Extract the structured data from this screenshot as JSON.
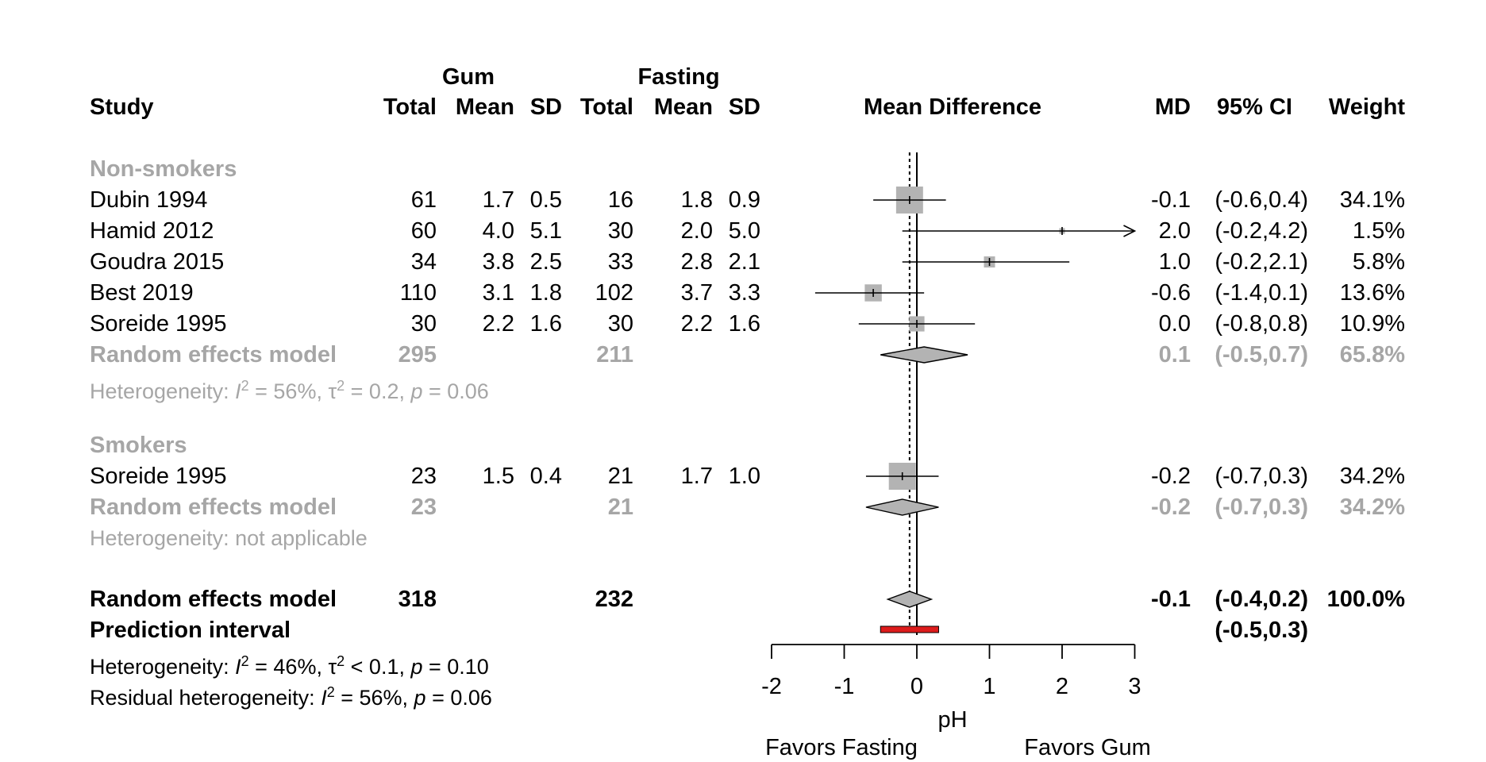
{
  "headers": {
    "group1": "Gum",
    "group2": "Fasting",
    "study": "Study",
    "total1": "Total",
    "mean1": "Mean",
    "sd1": "SD",
    "total2": "Total",
    "mean2": "Mean",
    "sd2": "SD",
    "plot": "Mean Difference",
    "md": "MD",
    "ci": "95% CI",
    "weight": "Weight"
  },
  "subgroups": [
    {
      "label": "Non-smokers",
      "rows": [
        {
          "study": "Dubin 1994",
          "total1": "61",
          "mean1": "1.7",
          "sd1": "0.5",
          "total2": "16",
          "mean2": "1.8",
          "sd2": "0.9",
          "md": "-0.1",
          "ci": "(-0.6,0.4)",
          "weight": "34.1%"
        },
        {
          "study": "Hamid 2012",
          "total1": "60",
          "mean1": "4.0",
          "sd1": "5.1",
          "total2": "30",
          "mean2": "2.0",
          "sd2": "5.0",
          "md": "2.0",
          "ci": "(-0.2,4.2)",
          "weight": "1.5%"
        },
        {
          "study": "Goudra 2015",
          "total1": "34",
          "mean1": "3.8",
          "sd1": "2.5",
          "total2": "33",
          "mean2": "2.8",
          "sd2": "2.1",
          "md": "1.0",
          "ci": "(-0.2,2.1)",
          "weight": "5.8%"
        },
        {
          "study": "Best 2019",
          "total1": "110",
          "mean1": "3.1",
          "sd1": "1.8",
          "total2": "102",
          "mean2": "3.7",
          "sd2": "3.3",
          "md": "-0.6",
          "ci": "(-1.4,0.1)",
          "weight": "13.6%"
        },
        {
          "study": "Soreide  1995",
          "total1": "30",
          "mean1": "2.2",
          "sd1": "1.6",
          "total2": "30",
          "mean2": "2.2",
          "sd2": "1.6",
          "md": "0.0",
          "ci": "(-0.8,0.8)",
          "weight": "10.9%"
        }
      ],
      "model": {
        "label": "Random effects model",
        "total1": "295",
        "total2": "211",
        "md": "0.1",
        "ci": "(-0.5,0.7)",
        "weight": "65.8%"
      },
      "heterogeneity": {
        "prefix": "Heterogeneity: ",
        "i2": "I",
        "i2val": " = 56%, ",
        "tau": "τ",
        "tauval": " = 0.2, ",
        "p": "p",
        "pval": " = 0.06"
      }
    },
    {
      "label": "Smokers",
      "rows": [
        {
          "study": "Soreide 1995",
          "total1": "23",
          "mean1": "1.5",
          "sd1": "0.4",
          "total2": "21",
          "mean2": "1.7",
          "sd2": "1.0",
          "md": "-0.2",
          "ci": "(-0.7,0.3)",
          "weight": "34.2%"
        }
      ],
      "model": {
        "label": "Random effects model",
        "total1": "23",
        "total2": "21",
        "md": "-0.2",
        "ci": "(-0.7,0.3)",
        "weight": "34.2%"
      },
      "heterogeneity": {
        "text": "Heterogeneity: not applicable"
      }
    }
  ],
  "overall": {
    "label": "Random effects model",
    "total1": "318",
    "total2": "232",
    "md": "-0.1",
    "ci": "(-0.4,0.2)",
    "weight": "100.0%",
    "pi_label": "Prediction interval",
    "pi_ci": "(-0.5,0.3)",
    "het": {
      "prefix": "Heterogeneity: ",
      "i2": "I",
      "i2val": " = 46%, ",
      "tau": "τ",
      "tauval": " < 0.1, ",
      "p": "p",
      "pval": " = 0.10"
    },
    "resid": {
      "prefix": "Residual heterogeneity: ",
      "i2": "I",
      "i2val": " = 56%, ",
      "p": "p",
      "pval": " = 0.06"
    }
  },
  "chart_data": {
    "type": "forest",
    "xlabel": "pH",
    "xlim": [
      -2,
      3
    ],
    "ticks": [
      "-2",
      "-1",
      "0",
      "1",
      "2",
      "3"
    ],
    "favors_left": "Favors Fasting",
    "favors_right": "Favors Gum",
    "reference_line": 0,
    "overall_line": -0.1,
    "colors": {
      "square": "#b3b3b3",
      "diamond_subgroup": "#b3b3b3",
      "diamond_overall": "#b3b3b3",
      "prediction": "#dd1c1c"
    },
    "studies": [
      {
        "study": "Dubin 1994",
        "md": -0.1,
        "lo": -0.6,
        "hi": 0.4,
        "weight": 34.1
      },
      {
        "study": "Hamid 2012",
        "md": 2.0,
        "lo": -0.2,
        "hi": 4.2,
        "weight": 1.5
      },
      {
        "study": "Goudra 2015",
        "md": 1.0,
        "lo": -0.2,
        "hi": 2.1,
        "weight": 5.8
      },
      {
        "study": "Best 2019",
        "md": -0.6,
        "lo": -1.4,
        "hi": 0.1,
        "weight": 13.6
      },
      {
        "study": "Soreide  1995",
        "md": 0.0,
        "lo": -0.8,
        "hi": 0.8,
        "weight": 10.9
      },
      {
        "study": "Soreide 1995",
        "md": -0.2,
        "lo": -0.7,
        "hi": 0.3,
        "weight": 34.2
      }
    ],
    "subgroup_models": [
      {
        "label": "Non-smokers",
        "md": 0.1,
        "lo": -0.5,
        "hi": 0.7
      },
      {
        "label": "Smokers",
        "md": -0.2,
        "lo": -0.7,
        "hi": 0.3
      }
    ],
    "overall_model": {
      "md": -0.1,
      "lo": -0.4,
      "hi": 0.2
    },
    "prediction_interval": {
      "lo": -0.5,
      "hi": 0.3
    }
  }
}
